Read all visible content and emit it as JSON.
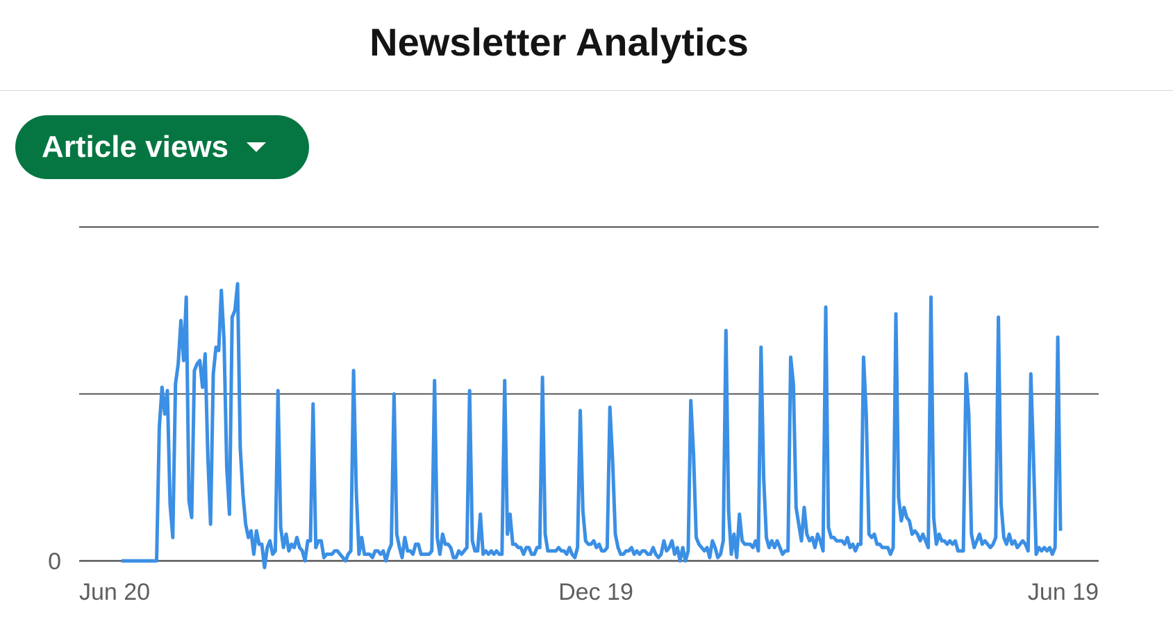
{
  "header": {
    "title": "Newsletter Analytics"
  },
  "metric_selector": {
    "label": "Article views",
    "icon": "caret-down-icon"
  },
  "colors": {
    "line": "#3b8fe4",
    "button": "#057642",
    "grid": "#555555"
  },
  "chart_data": {
    "type": "line",
    "title": "",
    "xlabel": "",
    "ylabel": "",
    "x_ticks": [
      "Jun 20",
      "Dec 19",
      "Jun 19"
    ],
    "y_ticks": [
      "0"
    ],
    "ylim": [
      0,
      1
    ],
    "gridlines": 3,
    "series": [
      {
        "name": "",
        "values": [
          0,
          0,
          0,
          0,
          0,
          0,
          0,
          0,
          0,
          0,
          0,
          0,
          0,
          0,
          0.4,
          0.52,
          0.44,
          0.51,
          0.17,
          0.07,
          0.53,
          0.59,
          0.72,
          0.6,
          0.79,
          0.18,
          0.13,
          0.57,
          0.59,
          0.6,
          0.52,
          0.62,
          0.31,
          0.11,
          0.56,
          0.64,
          0.63,
          0.81,
          0.66,
          0.28,
          0.14,
          0.73,
          0.75,
          0.83,
          0.34,
          0.2,
          0.11,
          0.07,
          0.09,
          0.02,
          0.09,
          0.05,
          0.05,
          -0.02,
          0.04,
          0.06,
          0.02,
          0.03,
          0.51,
          0.1,
          0.04,
          0.08,
          0.03,
          0.05,
          0.04,
          0.07,
          0.04,
          0.03,
          0.0,
          0.06,
          0.06,
          0.47,
          0.04,
          0.06,
          0.06,
          0.01,
          0.02,
          0.02,
          0.02,
          0.03,
          0.03,
          0.02,
          0.01,
          0.0,
          0.02,
          0.03,
          0.57,
          0.21,
          0.02,
          0.07,
          0.02,
          0.02,
          0.02,
          0.01,
          0.03,
          0.03,
          0.02,
          0.03,
          0.0,
          0.03,
          0.05,
          0.5,
          0.08,
          0.04,
          0.01,
          0.07,
          0.03,
          0.03,
          0.02,
          0.05,
          0.05,
          0.02,
          0.02,
          0.02,
          0.02,
          0.03,
          0.54,
          0.07,
          0.02,
          0.08,
          0.05,
          0.05,
          0.04,
          0.01,
          0.01,
          0.03,
          0.02,
          0.03,
          0.04,
          0.51,
          0.06,
          0.03,
          0.03,
          0.14,
          0.02,
          0.03,
          0.02,
          0.03,
          0.02,
          0.03,
          0.02,
          0.02,
          0.54,
          0.08,
          0.14,
          0.05,
          0.05,
          0.04,
          0.04,
          0.02,
          0.04,
          0.04,
          0.02,
          0.02,
          0.04,
          0.04,
          0.55,
          0.08,
          0.03,
          0.03,
          0.03,
          0.03,
          0.04,
          0.03,
          0.03,
          0.02,
          0.04,
          0.02,
          0.01,
          0.04,
          0.45,
          0.15,
          0.06,
          0.05,
          0.05,
          0.06,
          0.04,
          0.05,
          0.03,
          0.03,
          0.04,
          0.46,
          0.3,
          0.08,
          0.04,
          0.02,
          0.02,
          0.03,
          0.03,
          0.04,
          0.02,
          0.03,
          0.02,
          0.03,
          0.03,
          0.02,
          0.02,
          0.04,
          0.02,
          0.01,
          0.02,
          0.06,
          0.03,
          0.04,
          0.06,
          0.02,
          0.04,
          0.0,
          0.04,
          0.0,
          0.03,
          0.48,
          0.32,
          0.07,
          0.05,
          0.04,
          0.03,
          0.04,
          0.01,
          0.06,
          0.04,
          0.01,
          0.02,
          0.06,
          0.69,
          0.15,
          0.02,
          0.08,
          0.01,
          0.14,
          0.06,
          0.05,
          0.05,
          0.05,
          0.04,
          0.06,
          0.03,
          0.64,
          0.25,
          0.07,
          0.04,
          0.06,
          0.04,
          0.06,
          0.04,
          0.02,
          0.03,
          0.03,
          0.61,
          0.53,
          0.16,
          0.11,
          0.06,
          0.16,
          0.08,
          0.06,
          0.07,
          0.04,
          0.08,
          0.06,
          0.03,
          0.76,
          0.1,
          0.07,
          0.07,
          0.06,
          0.06,
          0.06,
          0.05,
          0.07,
          0.04,
          0.05,
          0.03,
          0.05,
          0.05,
          0.61,
          0.44,
          0.08,
          0.07,
          0.08,
          0.05,
          0.05,
          0.04,
          0.04,
          0.04,
          0.02,
          0.04,
          0.74,
          0.19,
          0.12,
          0.16,
          0.13,
          0.12,
          0.08,
          0.09,
          0.08,
          0.06,
          0.08,
          0.06,
          0.04,
          0.79,
          0.13,
          0.05,
          0.08,
          0.06,
          0.06,
          0.05,
          0.06,
          0.05,
          0.06,
          0.03,
          0.03,
          0.03,
          0.56,
          0.44,
          0.08,
          0.04,
          0.06,
          0.08,
          0.05,
          0.06,
          0.05,
          0.04,
          0.05,
          0.07,
          0.73,
          0.17,
          0.07,
          0.05,
          0.08,
          0.05,
          0.06,
          0.04,
          0.05,
          0.06,
          0.05,
          0.03,
          0.56,
          0.31,
          0.02,
          0.04,
          0.03,
          0.04,
          0.03,
          0.04,
          0.02,
          0.04,
          0.67,
          0.09
        ]
      }
    ]
  }
}
